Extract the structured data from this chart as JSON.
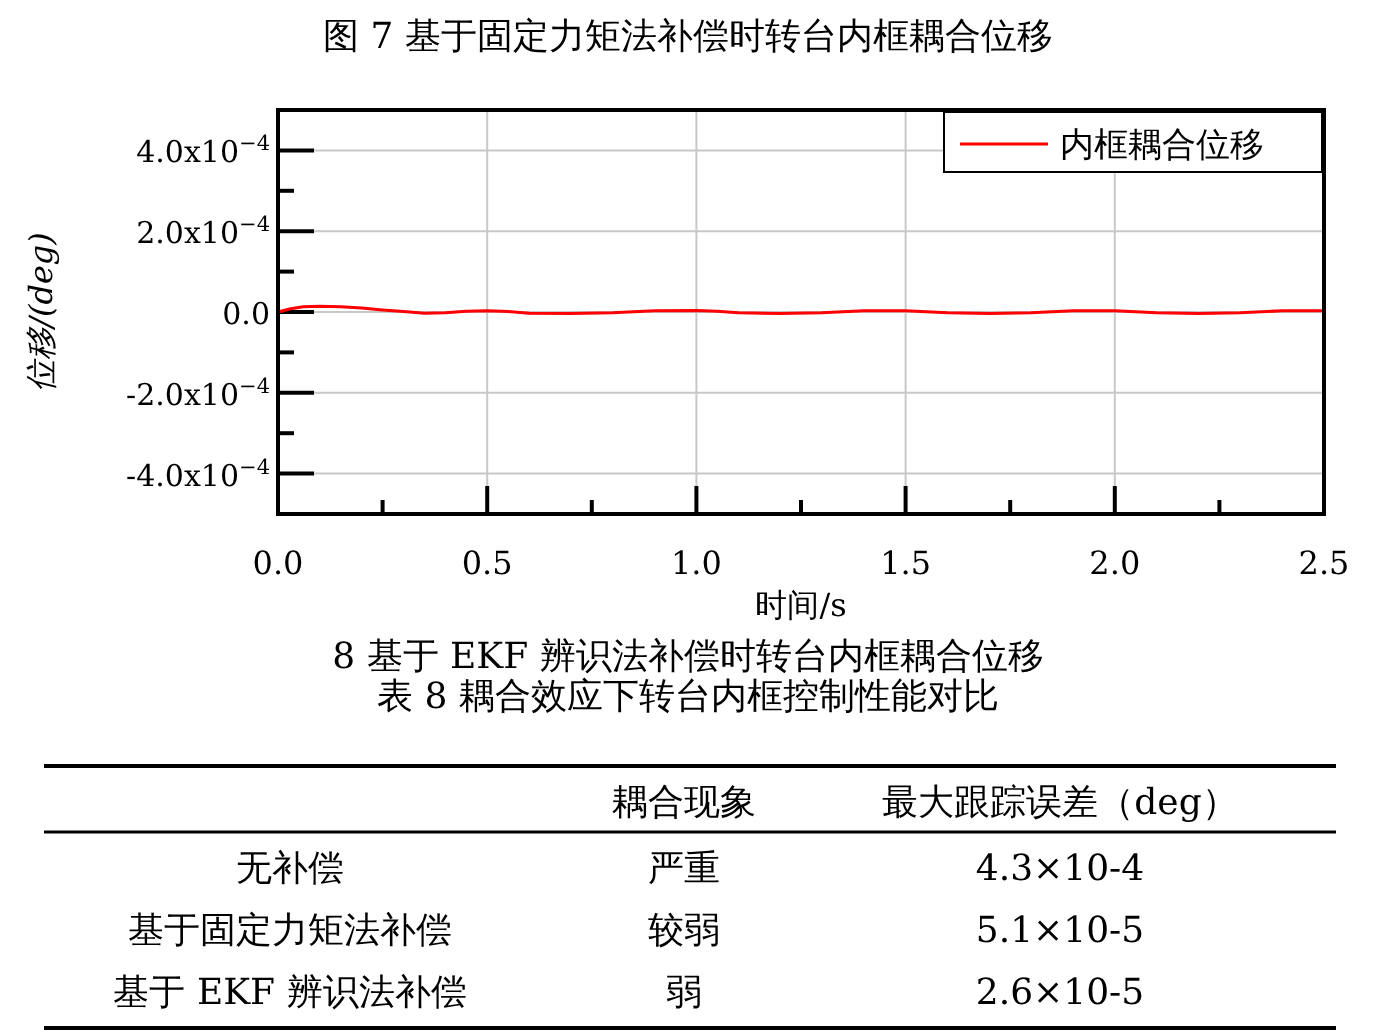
{
  "chart_data": [
    {
      "type": "line",
      "title": "图 7 基于固定力矩法补偿时转台内框耦合位移",
      "xlabel": "时间/s",
      "ylabel": "位移/(deg)",
      "legend": "top right",
      "grid": true,
      "marker": "none",
      "line_style": "solid",
      "xlim": [
        0,
        2.5
      ],
      "ylim": [
        -0.0005,
        0.0005
      ],
      "xticks": [
        {
          "value": 0,
          "label": "0.0"
        },
        {
          "value": 0.25,
          "label": null
        },
        {
          "value": 0.5,
          "label": "0.5"
        },
        {
          "value": 0.75,
          "label": null
        },
        {
          "value": 1,
          "label": "1.0"
        },
        {
          "value": 1.25,
          "label": null
        },
        {
          "value": 1.5,
          "label": "1.5"
        },
        {
          "value": 1.75,
          "label": null
        },
        {
          "value": 2,
          "label": "2.0"
        },
        {
          "value": 2.25,
          "label": null
        },
        {
          "value": 2.5,
          "label": "2.5"
        }
      ],
      "yticks": [
        {
          "value": -0.0004,
          "label": "-4.0x10$^{−4}$"
        },
        {
          "value": -0.0003,
          "label": null
        },
        {
          "value": -0.0002,
          "label": "-2.0x10$^{−4}$"
        },
        {
          "value": -0.0001,
          "label": null
        },
        {
          "value": 0,
          "label": "0.0"
        },
        {
          "value": 0.0001,
          "label": null
        },
        {
          "value": 0.0002,
          "label": "2.0x10$^{−4}$"
        },
        {
          "value": 0.0003,
          "label": null
        },
        {
          "value": 0.0004,
          "label": "4.0x10$^{−4}$"
        }
      ],
      "x": [
        0,
        0.03,
        0.06,
        0.1,
        0.15,
        0.2,
        0.25,
        0.3,
        0.35,
        0.4,
        0.45,
        0.5,
        0.55,
        0.6,
        0.7,
        0.8,
        0.9,
        1.0,
        1.05,
        1.1,
        1.2,
        1.3,
        1.4,
        1.5,
        1.6,
        1.7,
        1.8,
        1.9,
        2.0,
        2.1,
        2.2,
        2.3,
        2.4,
        2.5
      ],
      "series": [
        {
          "name": "内框耦合位移",
          "color": "#ff0000",
          "values": [
            0,
            8e-06,
            1.3e-05,
            1.4e-05,
            1.3e-05,
            1e-05,
            5e-06,
            1e-06,
            -3e-06,
            -2e-06,
            2e-06,
            3e-06,
            1e-06,
            -3e-06,
            -4e-06,
            -2e-06,
            3e-06,
            4e-06,
            2e-06,
            -2e-06,
            -4e-06,
            -2e-06,
            3e-06,
            3e-06,
            -2e-06,
            -4e-06,
            -2e-06,
            3e-06,
            3e-06,
            -2e-06,
            -4e-06,
            -2e-06,
            3e-06,
            3e-06
          ]
        }
      ],
      "annotations": [
        "8 基于 EKF 辨识法补偿时转台内框耦合位移"
      ]
    },
    {
      "type": "other",
      "title": "表 8 耦合效应下转台内框控制性能对比",
      "categories": [
        null,
        "耦合现象",
        "最大跟踪误差（deg）"
      ],
      "y_categories": [
        "无补偿",
        "基于固定力矩法补偿",
        "基于 EKF 辨识法补偿"
      ],
      "cell_labels": [
        [
          "严重",
          "4.3×10-4"
        ],
        [
          "较弱",
          "5.1×10-5"
        ],
        [
          "弱",
          "2.6×10-5"
        ]
      ]
    }
  ]
}
